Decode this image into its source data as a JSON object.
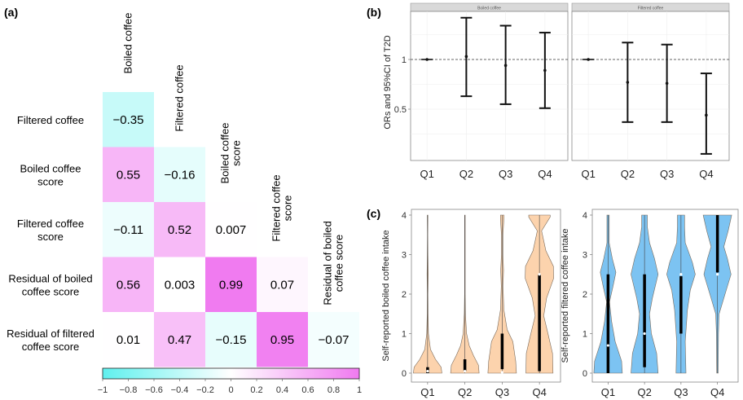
{
  "chart_data": [
    {
      "panel_label": "(a)",
      "type": "heatmap",
      "title": "",
      "variables": [
        "Boiled coffee",
        "Filtered coffee",
        "Boiled coffee score",
        "Filtered coffee score",
        "Residual of boiled coffee score",
        "Residual of filtered coffee score"
      ],
      "row_labels": [
        [
          "Filtered coffee"
        ],
        [
          "Boiled coffee",
          "score"
        ],
        [
          "Filtered coffee",
          "score"
        ],
        [
          "Residual of boiled",
          "coffee score"
        ],
        [
          "Residual of filtered",
          "coffee score"
        ]
      ],
      "col_labels": [
        [
          "Boiled coffee"
        ],
        [
          "Filtered coffee"
        ],
        [
          "Boiled coffee",
          "score"
        ],
        [
          "Filtered coffee",
          "score"
        ],
        [
          "Residual of boiled",
          "coffee score"
        ]
      ],
      "values": [
        [
          -0.35
        ],
        [
          0.55,
          -0.16
        ],
        [
          -0.11,
          0.52,
          0.007
        ],
        [
          0.56,
          0.003,
          0.99,
          0.07
        ],
        [
          0.01,
          0.47,
          -0.15,
          0.95,
          -0.07
        ]
      ],
      "value_labels": [
        [
          "−0.35"
        ],
        [
          "0.55",
          "−0.16"
        ],
        [
          "−0.11",
          "0.52",
          "0.007"
        ],
        [
          "0.56",
          "0.003",
          "0.99",
          "0.07"
        ],
        [
          "0.01",
          "0.47",
          "−0.15",
          "0.95",
          "−0.07"
        ]
      ],
      "colorbar": {
        "range": [
          -1,
          1
        ],
        "ticks": [
          "−1",
          "−0.8",
          "−0.6",
          "−0.4",
          "−0.2",
          "0",
          "0.2",
          "0.4",
          "0.6",
          "0.8",
          "1"
        ],
        "low_color": "#5ff0ee",
        "mid_color": "#ffffff",
        "high_color": "#f07af0"
      }
    },
    {
      "panel_label": "(b)",
      "type": "scatter",
      "subtype": "forest-errorbar",
      "ylabel": "ORs and 95%CI of T2D",
      "yticks": [
        "0.5",
        "1"
      ],
      "ylim": [
        0.2,
        1.45
      ],
      "reference_line": 1,
      "facets": [
        {
          "strip": "Boiled coffee",
          "categories": [
            "Q1",
            "Q2",
            "Q3",
            "Q4"
          ],
          "or": [
            1.0,
            1.03,
            0.94,
            0.89
          ],
          "lower": [
            1.0,
            0.63,
            0.55,
            0.51
          ],
          "upper": [
            1.0,
            1.42,
            1.34,
            1.27
          ]
        },
        {
          "strip": "Filtered coffee",
          "categories": [
            "Q1",
            "Q2",
            "Q3",
            "Q4"
          ],
          "or": [
            1.0,
            0.77,
            0.76,
            0.44
          ],
          "lower": [
            1.0,
            0.37,
            0.37,
            0.05
          ],
          "upper": [
            1.0,
            1.17,
            1.15,
            0.86
          ]
        }
      ]
    },
    {
      "panel_label": "(c)",
      "type": "violin",
      "ylim": [
        0,
        4
      ],
      "yticks": [
        "0",
        "1",
        "2",
        "3",
        "4"
      ],
      "panels": [
        {
          "ylabel": "Self-reported boiled coffee intake",
          "fill": "#fcd3ad",
          "categories": [
            "Q1",
            "Q2",
            "Q3",
            "Q4"
          ],
          "median": [
            0.05,
            0.05,
            0.02,
            2.5
          ],
          "iqr": [
            [
              0.0,
              0.15
            ],
            [
              0.05,
              0.35
            ],
            [
              0.1,
              1.0
            ],
            [
              0.05,
              2.5
            ]
          ]
        },
        {
          "ylabel": "Self-reported filtered coffee intake",
          "fill": "#7cc3f2",
          "categories": [
            "Q1",
            "Q2",
            "Q3",
            "Q4"
          ],
          "median": [
            0.7,
            1.0,
            2.5,
            2.5
          ],
          "iqr": [
            [
              0.0,
              2.5
            ],
            [
              0.15,
              2.5
            ],
            [
              1.0,
              2.45
            ],
            [
              2.55,
              4.0
            ]
          ]
        }
      ]
    }
  ]
}
